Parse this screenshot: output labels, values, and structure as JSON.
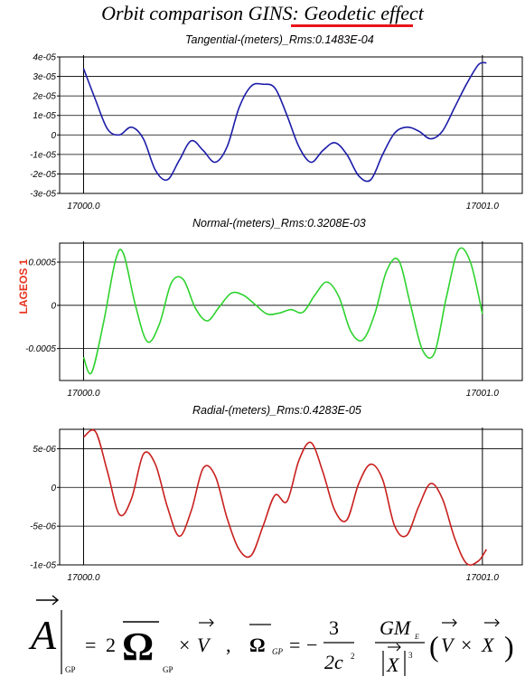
{
  "page": {
    "title_prefix": "Orbit comparison GINS: ",
    "title_highlight": "Geodetic effect",
    "side_label": "LAGEOS 1",
    "accent_color": "#e8141b"
  },
  "formula": {
    "lhs": "A",
    "sub_gp": "GP",
    "two": "2",
    "omega": "Ω",
    "times": "×",
    "v": "V",
    "comma": ",",
    "minus": "−",
    "three": "3",
    "two_c2": "2c",
    "gm": "GM",
    "sub_e": "E",
    "x": "X",
    "eq": "="
  },
  "chart_data": [
    {
      "type": "line",
      "title": "Tangential-(meters)_Rms:0.1483E-04",
      "x_ticks": [
        "17000.0",
        "17001.0"
      ],
      "y_ticks": [
        "4e-05",
        "3e-05",
        "2e-05",
        "1e-05",
        "0",
        "-1e-05",
        "-2e-05",
        "-3e-05"
      ],
      "ylim": [
        -3e-05,
        4e-05
      ],
      "xlim": [
        16999.94,
        17001.1
      ],
      "color": "#1c1ca8",
      "grid": true,
      "x": [
        17000.0,
        17000.03,
        17000.06,
        17000.09,
        17000.12,
        17000.15,
        17000.18,
        17000.21,
        17000.24,
        17000.27,
        17000.3,
        17000.33,
        17000.36,
        17000.39,
        17000.42,
        17000.45,
        17000.48,
        17000.51,
        17000.54,
        17000.57,
        17000.6,
        17000.63,
        17000.66,
        17000.69,
        17000.72,
        17000.75,
        17000.78,
        17000.81,
        17000.84,
        17000.87,
        17000.9,
        17000.93,
        17000.96,
        17000.99,
        17001.01
      ],
      "values": [
        3.4e-05,
        1.8e-05,
        3e-06,
        0.0,
        4e-06,
        -2e-06,
        -1.8e-05,
        -2.3e-05,
        -1.3e-05,
        -3e-06,
        -8e-06,
        -1.4e-05,
        -6e-06,
        1.4e-05,
        2.5e-05,
        2.6e-05,
        2.4e-05,
        1e-05,
        -6e-06,
        -1.4e-05,
        -8e-06,
        -4e-06,
        -1e-05,
        -2.1e-05,
        -2.3e-05,
        -1e-05,
        1e-06,
        4e-06,
        2e-06,
        -2e-06,
        2e-06,
        1.4e-05,
        2.6e-05,
        3.6e-05,
        3.7e-05
      ]
    },
    {
      "type": "line",
      "title": "Normal-(meters)_Rms:0.3208E-03",
      "x_ticks": [
        "17000.0",
        "17001.0"
      ],
      "y_ticks": [
        "0.0005",
        "0",
        "-0.0005"
      ],
      "ylim": [
        -0.00087,
        0.00072
      ],
      "xlim": [
        16999.94,
        17001.1
      ],
      "color": "#2ed22e",
      "grid": true,
      "x": [
        17000.0,
        17000.02,
        17000.05,
        17000.08,
        17000.1,
        17000.13,
        17000.16,
        17000.19,
        17000.22,
        17000.25,
        17000.28,
        17000.31,
        17000.34,
        17000.37,
        17000.4,
        17000.43,
        17000.46,
        17000.49,
        17000.52,
        17000.55,
        17000.58,
        17000.61,
        17000.64,
        17000.67,
        17000.7,
        17000.73,
        17000.76,
        17000.79,
        17000.82,
        17000.85,
        17000.88,
        17000.91,
        17000.94,
        17000.97,
        17001.0
      ],
      "values": [
        -0.0006,
        -0.00078,
        -0.0002,
        0.00052,
        0.0006,
        0.0,
        -0.00042,
        -0.00022,
        0.00026,
        0.0003,
        -3e-05,
        -0.00018,
        -2e-05,
        0.00014,
        0.00012,
        1e-05,
        -0.0001,
        -9e-05,
        -5e-05,
        -8e-05,
        0.00012,
        0.00027,
        0.0001,
        -0.0003,
        -0.0004,
        -0.0001,
        0.0004,
        0.00052,
        0.0,
        -0.00052,
        -0.00055,
        0.0001,
        0.00064,
        0.0005,
        -0.0001
      ]
    },
    {
      "type": "line",
      "title": "Radial-(meters)_Rms:0.4283E-05",
      "x_ticks": [
        "17000.0",
        "17001.0"
      ],
      "y_ticks": [
        "5e-06",
        "0",
        "-5e-06",
        "-1e-05"
      ],
      "ylim": [
        -1e-05,
        7.5e-06
      ],
      "xlim": [
        16999.94,
        17001.1
      ],
      "color": "#c8201e",
      "grid": true,
      "x": [
        17000.0,
        17000.03,
        17000.06,
        17000.09,
        17000.12,
        17000.15,
        17000.18,
        17000.21,
        17000.24,
        17000.27,
        17000.3,
        17000.33,
        17000.36,
        17000.39,
        17000.42,
        17000.45,
        17000.48,
        17000.51,
        17000.54,
        17000.57,
        17000.6,
        17000.63,
        17000.66,
        17000.69,
        17000.72,
        17000.75,
        17000.78,
        17000.81,
        17000.84,
        17000.87,
        17000.9,
        17000.93,
        17000.96,
        17000.99,
        17001.01
      ],
      "values": [
        6.5e-06,
        7.2e-06,
        2e-06,
        -3.5e-06,
        -1.5e-06,
        4.3e-06,
        3e-06,
        -2.5e-06,
        -6.3e-06,
        -3e-06,
        2.5e-06,
        1.5e-06,
        -4e-06,
        -8e-06,
        -8.8e-06,
        -5e-06,
        -1e-06,
        -1.8e-06,
        3.5e-06,
        5.8e-06,
        2e-06,
        -3e-06,
        -4.2e-06,
        5e-07,
        3e-06,
        1e-06,
        -5e-06,
        -6.2e-06,
        -2.5e-06,
        5e-07,
        -1.5e-06,
        -6.5e-06,
        -9.8e-06,
        -9.5e-06,
        -8e-06
      ]
    }
  ]
}
